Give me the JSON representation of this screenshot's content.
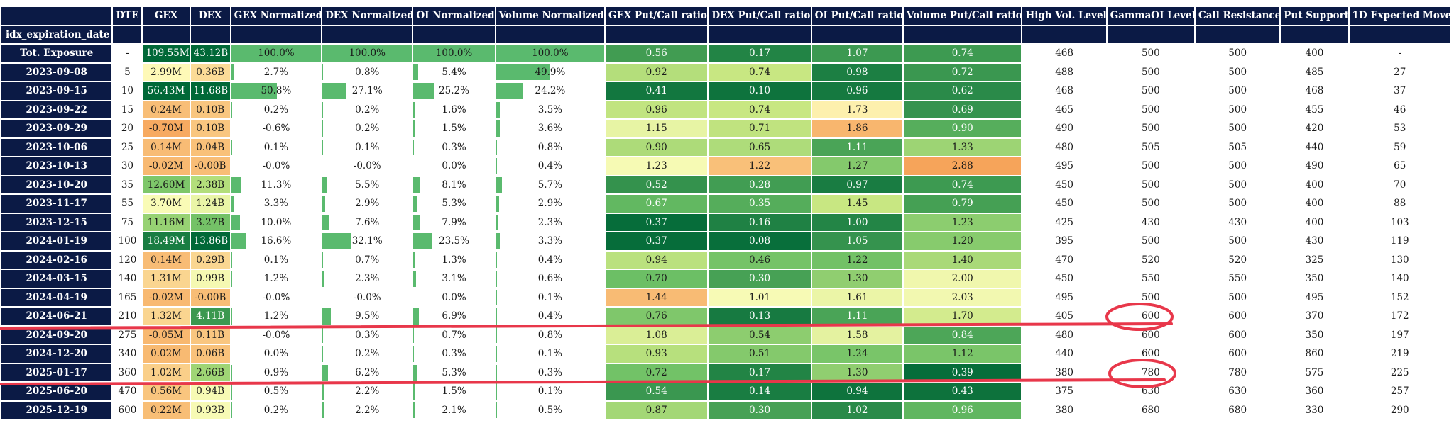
{
  "headers": [
    "",
    "DTE",
    "GEX",
    "DEX",
    "GEX Normalized",
    "DEX Normalized",
    "OI Normalized",
    "Volume Normalized",
    "GEX Put/Call ratio",
    "DEX Put/Call ratio",
    "OI Put/Call ratio",
    "Volume Put/Call ratio",
    "High Vol. Level",
    "GammaOI Level",
    "Call Resistance",
    "Put Support",
    "1D Expected Move"
  ],
  "index_name": "idx_expiration_date",
  "rows": [
    {
      "label": "Tot. Exposure",
      "dte": "-",
      "gex": "109.55M",
      "dex": "43.12B",
      "gex_n": "100.0%",
      "dex_n": "100.0%",
      "oi_n": "100.0%",
      "vol_n": "100.0%",
      "gex_pc": "0.56",
      "dex_pc": "0.17",
      "oi_pc": "1.07",
      "vol_pc": "0.74",
      "hvl": "468",
      "goi": "500",
      "cr": "500",
      "ps": "400",
      "em": "-"
    },
    {
      "label": "2023-09-08",
      "dte": "5",
      "gex": "2.99M",
      "dex": "0.36B",
      "gex_n": "2.7%",
      "dex_n": "0.8%",
      "oi_n": "5.4%",
      "vol_n": "49.9%",
      "gex_pc": "0.92",
      "dex_pc": "0.74",
      "oi_pc": "0.98",
      "vol_pc": "0.72",
      "hvl": "488",
      "goi": "500",
      "cr": "500",
      "ps": "485",
      "em": "27"
    },
    {
      "label": "2023-09-15",
      "dte": "10",
      "gex": "56.43M",
      "dex": "11.68B",
      "gex_n": "50.8%",
      "dex_n": "27.1%",
      "oi_n": "25.2%",
      "vol_n": "24.2%",
      "gex_pc": "0.41",
      "dex_pc": "0.10",
      "oi_pc": "0.96",
      "vol_pc": "0.62",
      "hvl": "468",
      "goi": "500",
      "cr": "500",
      "ps": "468",
      "em": "37"
    },
    {
      "label": "2023-09-22",
      "dte": "15",
      "gex": "0.24M",
      "dex": "0.10B",
      "gex_n": "0.2%",
      "dex_n": "0.2%",
      "oi_n": "1.6%",
      "vol_n": "3.5%",
      "gex_pc": "0.96",
      "dex_pc": "0.74",
      "oi_pc": "1.73",
      "vol_pc": "0.69",
      "hvl": "465",
      "goi": "500",
      "cr": "500",
      "ps": "455",
      "em": "46"
    },
    {
      "label": "2023-09-29",
      "dte": "20",
      "gex": "-0.70M",
      "dex": "0.10B",
      "gex_n": "-0.6%",
      "dex_n": "0.2%",
      "oi_n": "1.5%",
      "vol_n": "3.6%",
      "gex_pc": "1.15",
      "dex_pc": "0.71",
      "oi_pc": "1.86",
      "vol_pc": "0.90",
      "hvl": "490",
      "goi": "500",
      "cr": "500",
      "ps": "420",
      "em": "53"
    },
    {
      "label": "2023-10-06",
      "dte": "25",
      "gex": "0.14M",
      "dex": "0.04B",
      "gex_n": "0.1%",
      "dex_n": "0.1%",
      "oi_n": "0.3%",
      "vol_n": "0.8%",
      "gex_pc": "0.90",
      "dex_pc": "0.65",
      "oi_pc": "1.11",
      "vol_pc": "1.33",
      "hvl": "480",
      "goi": "505",
      "cr": "505",
      "ps": "440",
      "em": "59"
    },
    {
      "label": "2023-10-13",
      "dte": "30",
      "gex": "-0.02M",
      "dex": "-0.00B",
      "gex_n": "-0.0%",
      "dex_n": "-0.0%",
      "oi_n": "0.0%",
      "vol_n": "0.4%",
      "gex_pc": "1.23",
      "dex_pc": "1.22",
      "oi_pc": "1.27",
      "vol_pc": "2.88",
      "hvl": "495",
      "goi": "500",
      "cr": "500",
      "ps": "490",
      "em": "65"
    },
    {
      "label": "2023-10-20",
      "dte": "35",
      "gex": "12.60M",
      "dex": "2.38B",
      "gex_n": "11.3%",
      "dex_n": "5.5%",
      "oi_n": "8.1%",
      "vol_n": "5.7%",
      "gex_pc": "0.52",
      "dex_pc": "0.28",
      "oi_pc": "0.97",
      "vol_pc": "0.74",
      "hvl": "450",
      "goi": "500",
      "cr": "500",
      "ps": "400",
      "em": "70"
    },
    {
      "label": "2023-11-17",
      "dte": "55",
      "gex": "3.70M",
      "dex": "1.24B",
      "gex_n": "3.3%",
      "dex_n": "2.9%",
      "oi_n": "5.3%",
      "vol_n": "2.9%",
      "gex_pc": "0.67",
      "dex_pc": "0.35",
      "oi_pc": "1.45",
      "vol_pc": "0.79",
      "hvl": "450",
      "goi": "500",
      "cr": "500",
      "ps": "400",
      "em": "88"
    },
    {
      "label": "2023-12-15",
      "dte": "75",
      "gex": "11.16M",
      "dex": "3.27B",
      "gex_n": "10.0%",
      "dex_n": "7.6%",
      "oi_n": "7.9%",
      "vol_n": "2.3%",
      "gex_pc": "0.37",
      "dex_pc": "0.16",
      "oi_pc": "1.00",
      "vol_pc": "1.23",
      "hvl": "425",
      "goi": "430",
      "cr": "430",
      "ps": "400",
      "em": "103"
    },
    {
      "label": "2024-01-19",
      "dte": "100",
      "gex": "18.49M",
      "dex": "13.86B",
      "gex_n": "16.6%",
      "dex_n": "32.1%",
      "oi_n": "23.5%",
      "vol_n": "3.3%",
      "gex_pc": "0.37",
      "dex_pc": "0.08",
      "oi_pc": "1.05",
      "vol_pc": "1.20",
      "hvl": "395",
      "goi": "500",
      "cr": "500",
      "ps": "430",
      "em": "119"
    },
    {
      "label": "2024-02-16",
      "dte": "120",
      "gex": "0.14M",
      "dex": "0.29B",
      "gex_n": "0.1%",
      "dex_n": "0.7%",
      "oi_n": "1.3%",
      "vol_n": "0.4%",
      "gex_pc": "0.94",
      "dex_pc": "0.46",
      "oi_pc": "1.22",
      "vol_pc": "1.40",
      "hvl": "470",
      "goi": "520",
      "cr": "520",
      "ps": "325",
      "em": "130"
    },
    {
      "label": "2024-03-15",
      "dte": "140",
      "gex": "1.31M",
      "dex": "0.99B",
      "gex_n": "1.2%",
      "dex_n": "2.3%",
      "oi_n": "3.1%",
      "vol_n": "0.6%",
      "gex_pc": "0.70",
      "dex_pc": "0.30",
      "oi_pc": "1.30",
      "vol_pc": "2.00",
      "hvl": "450",
      "goi": "550",
      "cr": "550",
      "ps": "350",
      "em": "140"
    },
    {
      "label": "2024-04-19",
      "dte": "165",
      "gex": "-0.02M",
      "dex": "-0.00B",
      "gex_n": "-0.0%",
      "dex_n": "-0.0%",
      "oi_n": "0.0%",
      "vol_n": "0.1%",
      "gex_pc": "1.44",
      "dex_pc": "1.01",
      "oi_pc": "1.61",
      "vol_pc": "2.03",
      "hvl": "495",
      "goi": "500",
      "cr": "500",
      "ps": "495",
      "em": "152"
    },
    {
      "label": "2024-06-21",
      "dte": "210",
      "gex": "1.32M",
      "dex": "4.11B",
      "gex_n": "1.2%",
      "dex_n": "9.5%",
      "oi_n": "6.9%",
      "vol_n": "0.4%",
      "gex_pc": "0.76",
      "dex_pc": "0.13",
      "oi_pc": "1.11",
      "vol_pc": "1.70",
      "hvl": "405",
      "goi": "600",
      "cr": "600",
      "ps": "370",
      "em": "172"
    },
    {
      "label": "2024-09-20",
      "dte": "275",
      "gex": "-0.05M",
      "dex": "0.11B",
      "gex_n": "-0.0%",
      "dex_n": "0.3%",
      "oi_n": "0.7%",
      "vol_n": "0.8%",
      "gex_pc": "1.08",
      "dex_pc": "0.54",
      "oi_pc": "1.58",
      "vol_pc": "0.84",
      "hvl": "480",
      "goi": "600",
      "cr": "600",
      "ps": "350",
      "em": "197"
    },
    {
      "label": "2024-12-20",
      "dte": "340",
      "gex": "0.02M",
      "dex": "0.06B",
      "gex_n": "0.0%",
      "dex_n": "0.2%",
      "oi_n": "0.3%",
      "vol_n": "0.1%",
      "gex_pc": "0.93",
      "dex_pc": "0.51",
      "oi_pc": "1.24",
      "vol_pc": "1.12",
      "hvl": "440",
      "goi": "600",
      "cr": "600",
      "ps": "860",
      "em": "219"
    },
    {
      "label": "2025-01-17",
      "dte": "360",
      "gex": "1.02M",
      "dex": "2.66B",
      "gex_n": "0.9%",
      "dex_n": "6.2%",
      "oi_n": "5.3%",
      "vol_n": "0.3%",
      "gex_pc": "0.72",
      "dex_pc": "0.17",
      "oi_pc": "1.30",
      "vol_pc": "0.39",
      "hvl": "380",
      "goi": "780",
      "cr": "780",
      "ps": "575",
      "em": "225"
    },
    {
      "label": "2025-06-20",
      "dte": "470",
      "gex": "0.56M",
      "dex": "0.94B",
      "gex_n": "0.5%",
      "dex_n": "2.2%",
      "oi_n": "1.5%",
      "vol_n": "0.1%",
      "gex_pc": "0.54",
      "dex_pc": "0.14",
      "oi_pc": "0.94",
      "vol_pc": "0.43",
      "hvl": "375",
      "goi": "630",
      "cr": "630",
      "ps": "360",
      "em": "257"
    },
    {
      "label": "2025-12-19",
      "dte": "600",
      "gex": "0.22M",
      "dex": "0.93B",
      "gex_n": "0.2%",
      "dex_n": "2.2%",
      "oi_n": "2.1%",
      "vol_n": "0.5%",
      "gex_pc": "0.87",
      "dex_pc": "0.30",
      "oi_pc": "1.02",
      "vol_pc": "0.96",
      "hvl": "380",
      "goi": "680",
      "cr": "680",
      "ps": "330",
      "em": "290"
    }
  ],
  "colors": {
    "header_bg": "#0b1a45",
    "bar": "#5aba6e",
    "annotation": "#e8374a"
  }
}
